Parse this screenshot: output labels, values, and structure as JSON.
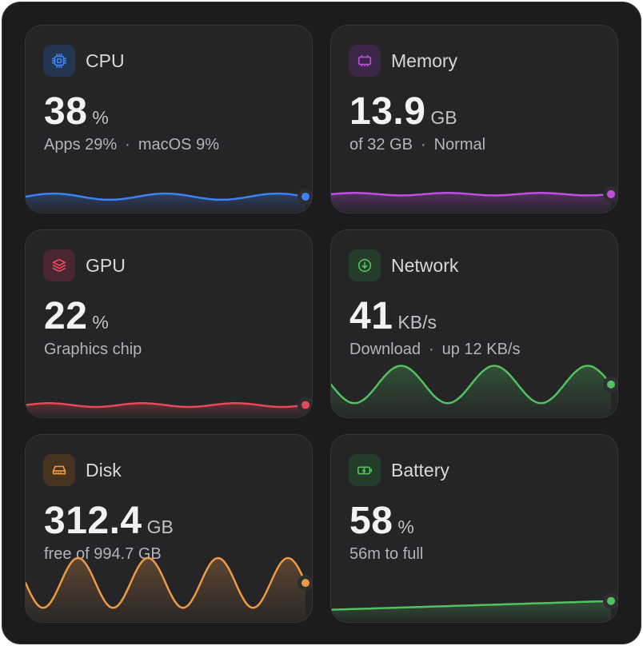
{
  "cards": [
    {
      "id": "cpu",
      "title": "CPU",
      "value": "38",
      "unit": "%",
      "sub_parts": [
        "Apps 29%",
        "macOS 9%"
      ],
      "icon": "cpu-chip-icon",
      "color": "#3b82f6",
      "icon_bg": "#24354f",
      "spark": {
        "shape": "flat-wave",
        "level": 0.18,
        "amplitude": 0.05,
        "cycles": 2.5
      }
    },
    {
      "id": "memory",
      "title": "Memory",
      "value": "13.9",
      "unit": "GB",
      "sub_parts": [
        "of 32 GB",
        "Normal"
      ],
      "icon": "memory-module-icon",
      "color": "#c04ee0",
      "icon_bg": "#3d2747",
      "spark": {
        "shape": "flat-wave",
        "level": 0.22,
        "amplitude": 0.02,
        "cycles": 3
      }
    },
    {
      "id": "gpu",
      "title": "GPU",
      "value": "22",
      "unit": "%",
      "sub_parts": [
        "Graphics chip"
      ],
      "icon": "layers-stack-icon",
      "color": "#e8485c",
      "icon_bg": "#4a2630",
      "spark": {
        "shape": "flat-wave",
        "level": 0.12,
        "amplitude": 0.03,
        "cycles": 3
      }
    },
    {
      "id": "network",
      "title": "Network",
      "value": "41",
      "unit": "KB/s",
      "sub_parts": [
        "Download",
        "up 12 KB/s"
      ],
      "icon": "download-circle-icon",
      "color": "#52c15e",
      "icon_bg": "#263c2b",
      "spark": {
        "shape": "wave",
        "level": 0.45,
        "amplitude": 0.3,
        "cycles": 3
      }
    },
    {
      "id": "disk",
      "title": "Disk",
      "value": "312.4",
      "unit": "GB",
      "sub_parts": [
        "free of 994.7 GB"
      ],
      "icon": "hard-drive-icon",
      "color": "#ee9a45",
      "icon_bg": "#45321f",
      "spark": {
        "shape": "wave",
        "level": 0.55,
        "amplitude": 0.4,
        "cycles": 4
      }
    },
    {
      "id": "battery",
      "title": "Battery",
      "value": "58",
      "unit": "%",
      "sub_parts": [
        "56m to full"
      ],
      "icon": "battery-charging-icon",
      "color": "#52c15e",
      "icon_bg": "#263c2b",
      "spark": {
        "shape": "rising",
        "level": 0.58
      }
    }
  ]
}
